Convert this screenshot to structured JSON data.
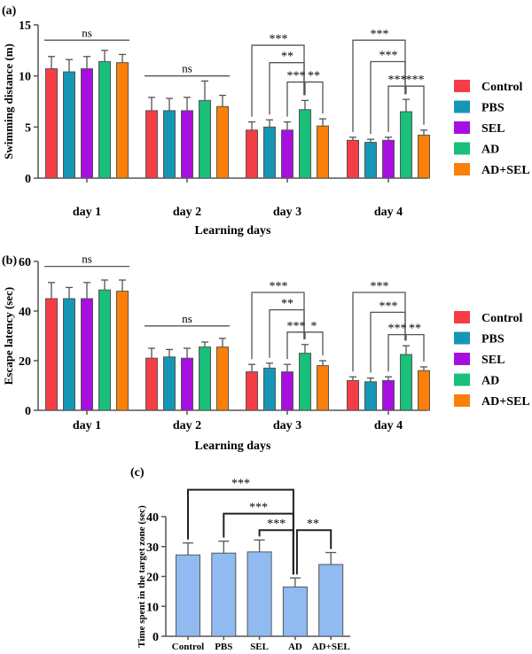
{
  "colors": {
    "Control": "#f53d45",
    "PBS": "#1596b5",
    "SEL": "#a60fe0",
    "AD": "#18c07a",
    "AD+SEL": "#fb7f08",
    "panel_c_bar": "#91bbf0",
    "axis": "#555555"
  },
  "chart_data": [
    {
      "panel_label": "(a)",
      "type": "bar",
      "xlabel": "Learning days",
      "ylabel": "Swimming distance (m)",
      "ylim": [
        0,
        15
      ],
      "yticks": [
        0,
        5,
        10,
        15
      ],
      "categories": [
        "day 1",
        "day 2",
        "day 3",
        "day 4"
      ],
      "legend": "right",
      "series": [
        {
          "name": "Control",
          "values": [
            10.7,
            6.6,
            4.7,
            3.7
          ],
          "errors": [
            1.2,
            1.3,
            0.8,
            0.3
          ]
        },
        {
          "name": "PBS",
          "values": [
            10.4,
            6.6,
            5.0,
            3.5
          ],
          "errors": [
            1.2,
            1.2,
            0.7,
            0.3
          ]
        },
        {
          "name": "SEL",
          "values": [
            10.7,
            6.6,
            4.7,
            3.7
          ],
          "errors": [
            1.2,
            1.3,
            0.8,
            0.3
          ]
        },
        {
          "name": "AD",
          "values": [
            11.4,
            7.6,
            6.7,
            6.5
          ],
          "errors": [
            1.1,
            1.9,
            0.9,
            1.2
          ]
        },
        {
          "name": "AD+SEL",
          "values": [
            11.3,
            7.0,
            5.1,
            4.2
          ],
          "errors": [
            0.8,
            1.1,
            0.7,
            0.5
          ]
        }
      ],
      "annotations": [
        {
          "group": 0,
          "type": "line",
          "from": 0,
          "to": 4,
          "y": 13.5,
          "label": "ns"
        },
        {
          "group": 1,
          "type": "line",
          "from": 0,
          "to": 4,
          "y": 10.0,
          "label": "ns"
        },
        {
          "group": 2,
          "type": "bracket",
          "from": 0,
          "to": 3,
          "y": 13.0,
          "label": "***"
        },
        {
          "group": 2,
          "type": "bracket",
          "from": 1,
          "to": 3,
          "y": 11.3,
          "label": "**"
        },
        {
          "group": 2,
          "type": "bracket",
          "from": 2,
          "to": 3,
          "y": 9.4,
          "label": "***"
        },
        {
          "group": 2,
          "type": "bracket",
          "from": 3,
          "to": 4,
          "y": 9.4,
          "label": "**"
        },
        {
          "group": 3,
          "type": "bracket",
          "from": 0,
          "to": 3,
          "y": 13.5,
          "label": "***"
        },
        {
          "group": 3,
          "type": "bracket",
          "from": 1,
          "to": 3,
          "y": 11.4,
          "label": "***"
        },
        {
          "group": 3,
          "type": "bracket",
          "from": 2,
          "to": 3,
          "y": 9.0,
          "label": "***"
        },
        {
          "group": 3,
          "type": "bracket",
          "from": 3,
          "to": 4,
          "y": 9.0,
          "label": "***"
        }
      ]
    },
    {
      "panel_label": "(b)",
      "type": "bar",
      "xlabel": "Learning days",
      "ylabel": "Escape latency (sec)",
      "ylim": [
        0,
        60
      ],
      "yticks": [
        0,
        20,
        40,
        60
      ],
      "categories": [
        "day 1",
        "day 2",
        "day 3",
        "day 4"
      ],
      "legend": "right",
      "series": [
        {
          "name": "Control",
          "values": [
            45,
            21,
            15.5,
            12
          ],
          "errors": [
            6.5,
            4,
            3,
            1.5
          ]
        },
        {
          "name": "PBS",
          "values": [
            45,
            21.5,
            17,
            11.5
          ],
          "errors": [
            4.5,
            3,
            2,
            1.5
          ]
        },
        {
          "name": "SEL",
          "values": [
            45,
            21,
            15.5,
            12
          ],
          "errors": [
            6.5,
            4,
            3,
            1.5
          ]
        },
        {
          "name": "AD",
          "values": [
            48.5,
            25.5,
            23,
            22.5
          ],
          "errors": [
            4,
            2,
            3.5,
            3.5
          ]
        },
        {
          "name": "AD+SEL",
          "values": [
            48,
            25.5,
            18,
            16
          ],
          "errors": [
            4.5,
            3.5,
            2,
            1.5
          ]
        }
      ],
      "annotations": [
        {
          "group": 0,
          "type": "line",
          "from": 0,
          "to": 4,
          "y": 58,
          "label": "ns"
        },
        {
          "group": 1,
          "type": "line",
          "from": 0,
          "to": 4,
          "y": 34,
          "label": "ns"
        },
        {
          "group": 2,
          "type": "bracket",
          "from": 0,
          "to": 3,
          "y": 47.5,
          "label": "***"
        },
        {
          "group": 2,
          "type": "bracket",
          "from": 1,
          "to": 3,
          "y": 40.5,
          "label": "**"
        },
        {
          "group": 2,
          "type": "bracket",
          "from": 2,
          "to": 3,
          "y": 31.5,
          "label": "***"
        },
        {
          "group": 2,
          "type": "bracket",
          "from": 3,
          "to": 4,
          "y": 31.5,
          "label": "*"
        },
        {
          "group": 3,
          "type": "bracket",
          "from": 0,
          "to": 3,
          "y": 47.5,
          "label": "***"
        },
        {
          "group": 3,
          "type": "bracket",
          "from": 1,
          "to": 3,
          "y": 39.5,
          "label": "***"
        },
        {
          "group": 3,
          "type": "bracket",
          "from": 2,
          "to": 3,
          "y": 30.5,
          "label": "***"
        },
        {
          "group": 3,
          "type": "bracket",
          "from": 3,
          "to": 4,
          "y": 30.5,
          "label": "**"
        }
      ]
    },
    {
      "panel_label": "(c)",
      "type": "bar",
      "xlabel": "",
      "ylabel": "Time spent in the target zone (sec)",
      "ylim": [
        0,
        40
      ],
      "yticks": [
        0,
        10,
        20,
        30,
        40
      ],
      "categories": [
        "Control",
        "PBS",
        "SEL",
        "AD",
        "AD+SEL"
      ],
      "values": [
        27.2,
        27.8,
        28.2,
        16.5,
        24.0
      ],
      "errors": [
        4.0,
        4.0,
        4.0,
        3.0,
        4.0
      ],
      "annotations": [
        {
          "type": "bracket",
          "from": 0,
          "to": 3,
          "y": 49.0,
          "label": "***"
        },
        {
          "type": "bracket",
          "from": 1,
          "to": 3,
          "y": 41.0,
          "label": "***"
        },
        {
          "type": "bracket",
          "from": 2,
          "to": 3,
          "y": 35.5,
          "label": "***"
        },
        {
          "type": "bracket",
          "from": 3,
          "to": 4,
          "y": 35.5,
          "label": "**"
        }
      ]
    }
  ]
}
